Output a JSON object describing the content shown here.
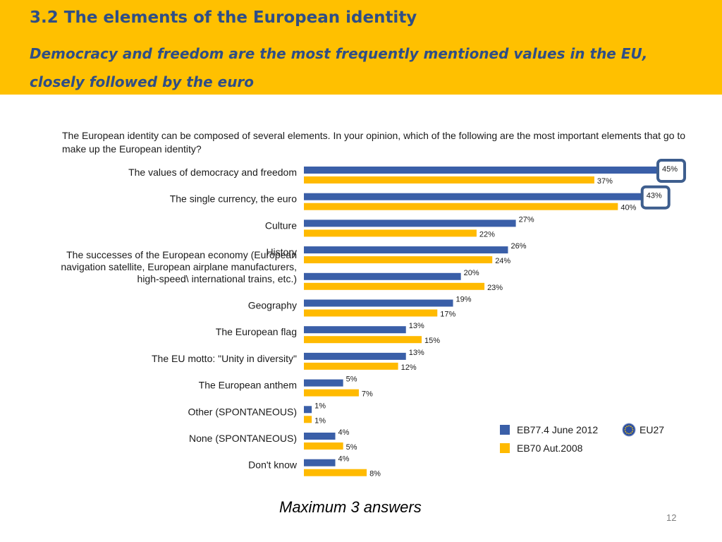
{
  "header": {
    "title": "3.2 The elements of the European identity",
    "subtitle": "Democracy and freedom are the most frequently mentioned values in the EU, closely followed by the euro"
  },
  "question": "The European identity can be composed of several elements. In your opinion, which of the following are the most important elements that go to make up the European identity?",
  "footnote": "Maximum 3 answers",
  "page_number": "12",
  "colors": {
    "header_bg": "#FFC000",
    "series_2012": "#3A5FA8",
    "series_2008": "#FFBA00",
    "highlight_box": "#3E5E8E"
  },
  "chart_data": {
    "type": "bar",
    "orientation": "horizontal",
    "categories": [
      "The values of democracy and freedom",
      "The single currency, the euro",
      "Culture",
      "History",
      "The successes of the European economy (European navigation satellite, European airplane manufacturers, high-speed\\ international trains, etc.)",
      "Geography",
      "The European flag",
      "The EU motto: \"Unity in diversity\"",
      "The European anthem",
      "Other (SPONTANEOUS)",
      "None (SPONTANEOUS)",
      "Don't know"
    ],
    "category_lines": [
      [
        "The values of democracy and freedom"
      ],
      [
        "The single currency, the euro"
      ],
      [
        "Culture"
      ],
      [
        "History"
      ],
      [
        "The successes of the European economy (European",
        "navigation satellite, European airplane manufacturers,",
        "high-speed\\ international trains, etc.)"
      ],
      [
        "Geography"
      ],
      [
        "The European flag"
      ],
      [
        "The EU motto: \"Unity in diversity\""
      ],
      [
        "The European anthem"
      ],
      [
        "Other (SPONTANEOUS)"
      ],
      [
        "None (SPONTANEOUS)"
      ],
      [
        "Don't know"
      ]
    ],
    "series": [
      {
        "name": "EB77.4 June 2012",
        "color": "#3A5FA8",
        "values": [
          45,
          43,
          27,
          26,
          20,
          19,
          13,
          13,
          5,
          1,
          4,
          4
        ]
      },
      {
        "name": "EB70 Aut.2008",
        "color": "#FFBA00",
        "values": [
          37,
          40,
          22,
          24,
          23,
          17,
          15,
          12,
          7,
          1,
          5,
          8
        ]
      }
    ],
    "value_suffix": "%",
    "highlighted": [
      {
        "category_index": 0,
        "series_index": 0
      },
      {
        "category_index": 1,
        "series_index": 0
      }
    ],
    "legend": {
      "placement": "bottom-right",
      "extra_label": "EU27",
      "extra_icon": "eu-flag-icon"
    },
    "xlim": [
      0,
      45
    ],
    "grid": false
  }
}
